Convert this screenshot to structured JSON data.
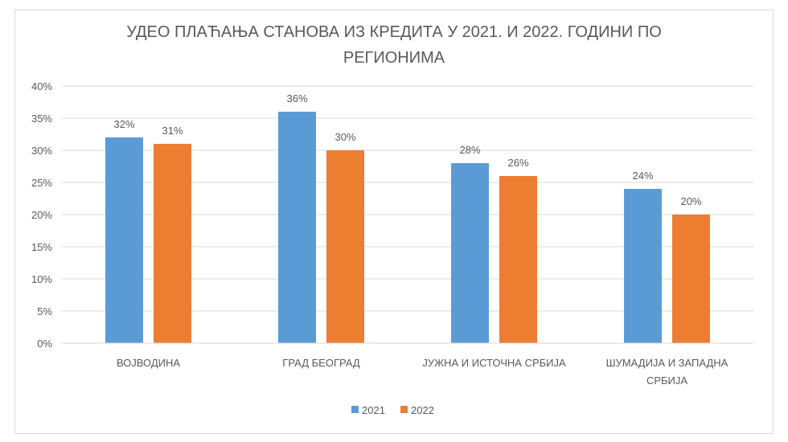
{
  "chart_data": {
    "type": "bar",
    "title": "УДЕО ПЛАЋАЊА СТАНОВА ИЗ КРЕДИТА У 2021. И 2022. ГОДИНИ ПО РЕГИОНИМА",
    "categories": [
      [
        "ВОЈВОДИНА"
      ],
      [
        "ГРАД БЕОГРАД"
      ],
      [
        "ЈУЖНА И ИСТОЧНА СРБИЈА"
      ],
      [
        "ШУМАДИЈА И ЗАПАДНА",
        "СРБИЈА"
      ]
    ],
    "series": [
      {
        "name": "2021",
        "values": [
          32,
          36,
          28,
          24
        ],
        "labels": [
          "32%",
          "36%",
          "28%",
          "24%"
        ],
        "color": "#5b9bd5"
      },
      {
        "name": "2022",
        "values": [
          31,
          30,
          26,
          20
        ],
        "labels": [
          "31%",
          "30%",
          "26%",
          "20%"
        ],
        "color": "#ed7d31"
      }
    ],
    "ylim": [
      0,
      40
    ],
    "yticks": [
      "0%",
      "5%",
      "10%",
      "15%",
      "20%",
      "25%",
      "30%",
      "35%",
      "40%"
    ],
    "grid": true,
    "legend": "bottom"
  }
}
